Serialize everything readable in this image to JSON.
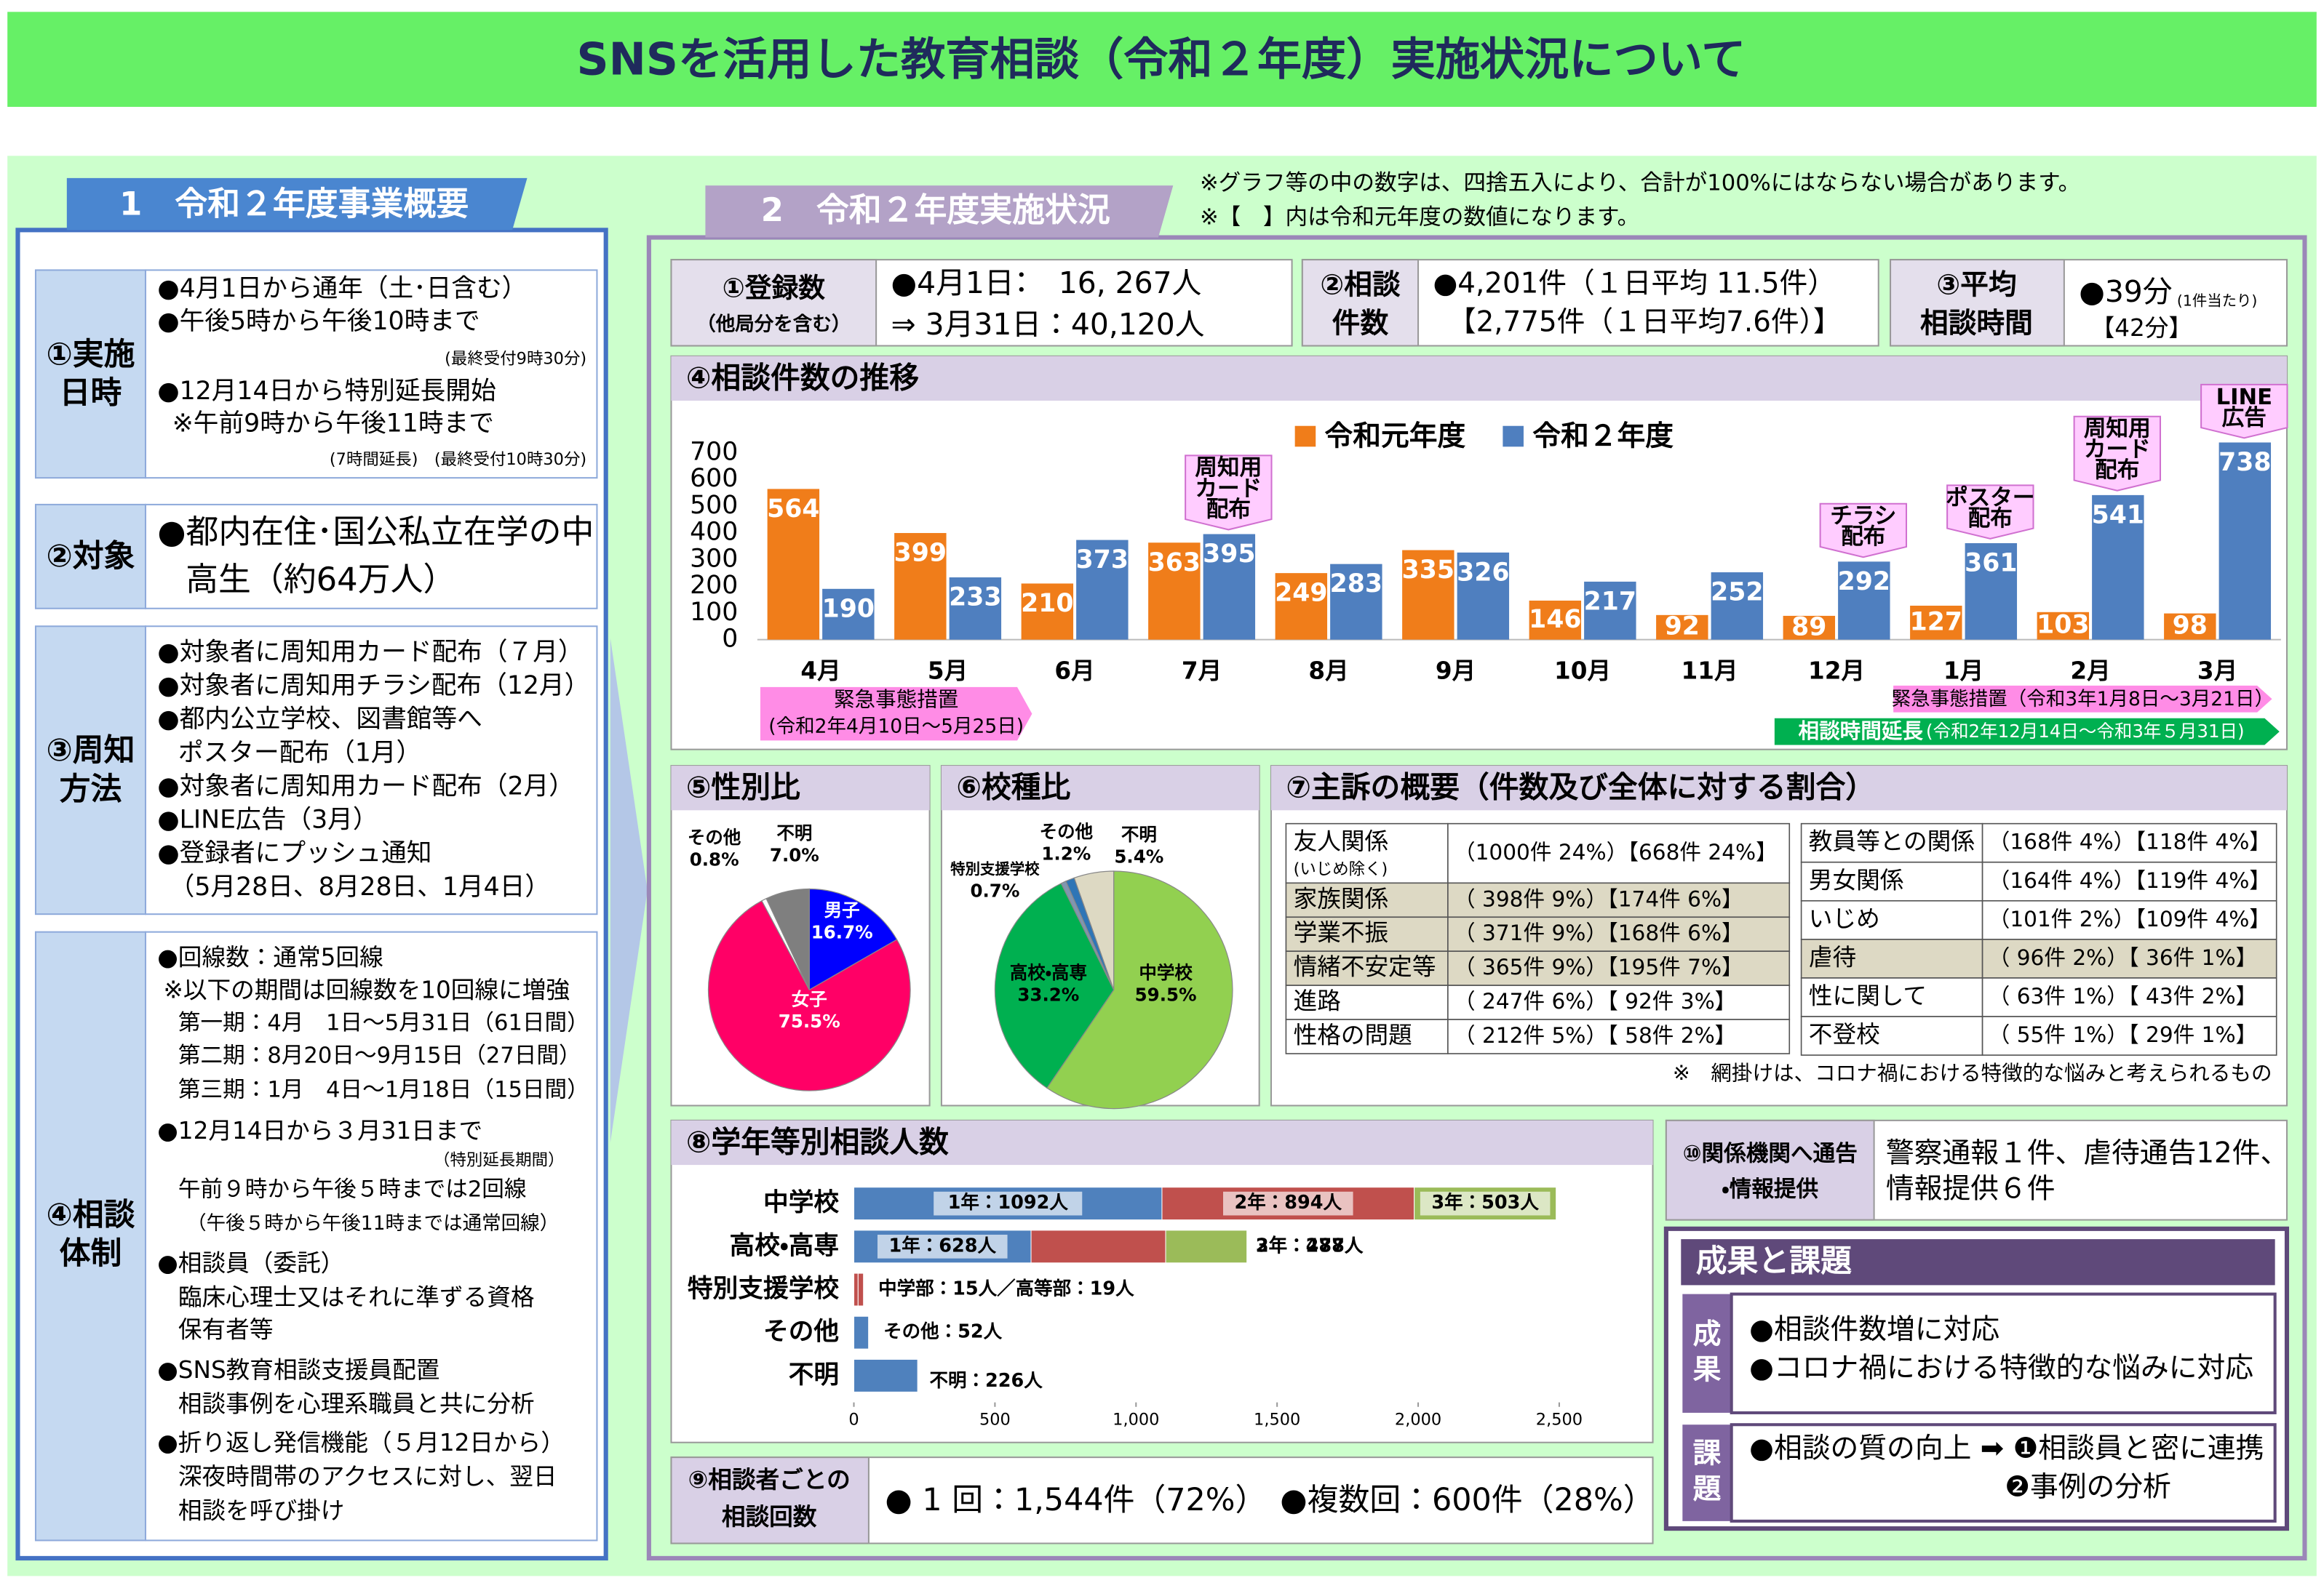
{
  "title": "SNSを活用した教育相談（令和２年度）実施状況について",
  "section1": {
    "heading": "1　令和２年度事業概要",
    "blocks": [
      {
        "label": [
          "①実施",
          "日時"
        ],
        "lines": [
          "●4月1日から通年（土･日含む）",
          "●午後5時から午後10時まで",
          "(最終受付9時30分)",
          "●12月14日から特別延長開始",
          "※午前9時から午後11時まで",
          "(7時間延長)　(最終受付10時30分)"
        ]
      },
      {
        "label": [
          "②対象"
        ],
        "lines": [
          "●都内在住･国公私立在学の中",
          "高生（約64万人）"
        ]
      },
      {
        "label": [
          "③周知",
          "方法"
        ],
        "lines": [
          "●対象者に周知用カード配布（７月）",
          "●対象者に周知用チラシ配布（12月）",
          "●都内公立学校、図書館等へ",
          "ポスター配布（1月）",
          "●対象者に周知用カード配布（2月）",
          "●LINE広告（3月）",
          "●登録者にプッシュ通知",
          "（5月28日、8月28日、1月4日）"
        ]
      },
      {
        "label": [
          "④相談",
          "体制"
        ],
        "lines": [
          "●回線数：通常5回線",
          "※以下の期間は回線数を10回線に増強",
          "第一期：4月　1日～5月31日（61日間）",
          "第二期：8月20日～9月15日（27日間）",
          "第三期：1月　4日～1月18日（15日間）",
          "●12月14日から３月31日まで",
          "（特別延長期間）",
          "午前９時から午後５時までは2回線",
          "（午後５時から午後11時までは通常回線）",
          "●相談員（委託）",
          "臨床心理士又はそれに準ずる資格",
          "保有者等",
          "●SNS教育相談支援員配置",
          "相談事例を心理系職員と共に分析",
          "●折り返し発信機能（５月12日から）",
          "深夜時間帯のアクセスに対し、翌日",
          "相談を呼び掛け"
        ]
      }
    ]
  },
  "section2": {
    "heading": "2　令和２年度実施状況",
    "notes": [
      "※グラフ等の中の数字は、四捨五入により、合計が100%にはならない場合があります。",
      "※【　】内は令和元年度の数値になります。"
    ],
    "summary": [
      {
        "label": [
          "①登録数",
          "（他局分を含む）"
        ],
        "lines": [
          "●4月1日：　16, 267人",
          "⇒ 3月31日：40,120人"
        ]
      },
      {
        "label": [
          "②相談",
          "件数"
        ],
        "lines": [
          "●4,201件（１日平均 11.5件）",
          "【2,775件（１日平均7.6件）】"
        ]
      },
      {
        "label": [
          "③平均",
          "相談時間"
        ],
        "lines": [
          "●39分",
          "(1件当たり)",
          "【42分】"
        ]
      }
    ],
    "complaints": {
      "title": "⑦主訴の概要（件数及び全体に対する割合）",
      "tables": [
        [
          {
            "label": [
              "友人関係",
              "(いじめ除く)"
            ],
            "value": "（1000件 24%）【668件 24%】",
            "shaded": false
          },
          {
            "label": [
              "家族関係"
            ],
            "value": "（ 398件 9%）【174件 6%】",
            "shaded": true
          },
          {
            "label": [
              "学業不振"
            ],
            "value": "（ 371件 9%）【168件 6%】",
            "shaded": true
          },
          {
            "label": [
              "情緒不安定等"
            ],
            "value": "（ 365件 9%）【195件 7%】",
            "shaded": true
          },
          {
            "label": [
              "進路"
            ],
            "value": "（ 247件 6%）【 92件 3%】",
            "shaded": false
          },
          {
            "label": [
              "性格の問題"
            ],
            "value": "（ 212件 5%）【 58件 2%】",
            "shaded": false
          }
        ],
        [
          {
            "label": [
              "教員等との関係"
            ],
            "value": "（168件 4%）【118件 4%】",
            "shaded": false
          },
          {
            "label": [
              "男女関係"
            ],
            "value": "（164件 4%）【119件 4%】",
            "shaded": false
          },
          {
            "label": [
              "いじめ"
            ],
            "value": "（101件 2%）【109件 4%】",
            "shaded": false
          },
          {
            "label": [
              "虐待"
            ],
            "value": "（ 96件 2%）【 36件 1%】",
            "shaded": true
          },
          {
            "label": [
              "性に関して"
            ],
            "value": "（ 63件 1%）【 43件 2%】",
            "shaded": false
          },
          {
            "label": [
              "不登校"
            ],
            "value": "（ 55件 1%）【 29件 1%】",
            "shaded": false
          }
        ]
      ],
      "note": "※　網掛けは、コロナ禍における特徴的な悩みと考えられるもの"
    },
    "counts": {
      "label": [
        "⑨相談者ごとの",
        "相談回数"
      ],
      "lines": [
        "● 1 回：1,544件（72%）",
        "●複数回：600件（28%）"
      ]
    },
    "referrals": {
      "label": [
        "⑩関係機関へ通告",
        "・情報提供"
      ],
      "lines": [
        "警察通報１件、虐待通告12件、",
        "情報提供６件"
      ]
    },
    "results": {
      "heading": "成果と課題",
      "rows": [
        {
          "label": [
            "成",
            "果"
          ],
          "lines": [
            "●相談件数増に対応",
            "●コロナ禍における特徴的な悩みに対応"
          ]
        },
        {
          "label": [
            "課",
            "題"
          ],
          "lines": [
            "●相談の質の向上 ➡ ❶相談員と密に連携",
            "❷事例の分析"
          ]
        }
      ]
    }
  },
  "chart_data": [
    {
      "type": "bar",
      "title": "④相談件数の推移",
      "categories": [
        "4月",
        "5月",
        "6月",
        "7月",
        "8月",
        "9月",
        "10月",
        "11月",
        "12月",
        "1月",
        "2月",
        "3月"
      ],
      "series": [
        {
          "name": "令和元年度",
          "color": "#f07d1a",
          "values": [
            564,
            399,
            210,
            363,
            249,
            335,
            146,
            92,
            89,
            127,
            103,
            98
          ]
        },
        {
          "name": "令和２年度",
          "color": "#4f7fbf",
          "values": [
            190,
            233,
            373,
            395,
            283,
            326,
            217,
            252,
            292,
            361,
            541,
            738
          ]
        }
      ],
      "ylim": [
        0,
        700
      ],
      "yticks": [
        0,
        100,
        200,
        300,
        400,
        500,
        600,
        700
      ],
      "grid": false,
      "annotations": [
        {
          "text": [
            "周知用",
            "カード",
            "配布"
          ]
        },
        {
          "text": [
            "チラシ",
            "配布"
          ]
        },
        {
          "text": [
            "ポスター",
            "配布"
          ]
        },
        {
          "text": [
            "周知用",
            "カード",
            "配布"
          ]
        },
        {
          "text": [
            "LINE",
            "広告"
          ]
        }
      ],
      "periods": [
        {
          "lines": [
            "緊急事態措置",
            "(令和2年4月10日～5月25日)"
          ],
          "color": "#ff8ce6"
        },
        {
          "lines": [
            "緊急事態措置（令和3年1月8日～3月21日）"
          ],
          "color": "#ff8ce6"
        },
        {
          "lines": [
            "相談時間延長",
            "(令和2年12月14日～令和3年５月31日)"
          ],
          "color": "#00b050"
        }
      ]
    },
    {
      "type": "pie",
      "title": "⑤性別比",
      "categories": [
        "男子",
        "女子",
        "その他",
        "不明"
      ],
      "values": [
        16.7,
        75.5,
        0.8,
        7.0
      ],
      "value_labels": [
        "16.7%",
        "75.5%",
        "0.8%",
        "7.0%"
      ],
      "colors": [
        "#0000ff",
        "#ff0066",
        "#ffffff",
        "#7f7f7f"
      ]
    },
    {
      "type": "pie",
      "title": "⑥校種比",
      "categories": [
        "中学校",
        "高校・高専",
        "特別支援学校",
        "その他",
        "不明"
      ],
      "values": [
        59.5,
        33.2,
        0.7,
        1.2,
        5.4
      ],
      "value_labels": [
        "59.5%",
        "33.2%",
        "0.7%",
        "1.2%",
        "5.4%"
      ],
      "colors": [
        "#92d050",
        "#00b050",
        "#8096b0",
        "#2e75b6",
        "#ddd9c3"
      ]
    },
    {
      "type": "hbar_stacked",
      "title": "⑧学年等別相談人数",
      "categories": [
        "中学校",
        "高校・高専",
        "特別支援学校",
        "その他",
        "不明"
      ],
      "bars": [
        {
          "segments": [
            {
              "value": 1092,
              "color": "#4f81bd",
              "value_label": "1年：1092人"
            },
            {
              "value": 894,
              "color": "#c0504d",
              "value_label": "2年：894人"
            },
            {
              "value": 503,
              "color": "#9bbb59",
              "value_label": "3年：503人"
            }
          ]
        },
        {
          "segments": [
            {
              "value": 628,
              "color": "#4f81bd",
              "value_label": "1年：628人"
            },
            {
              "value": 477,
              "color": "#c0504d",
              "value_label": "2年：477人"
            },
            {
              "value": 288,
              "color": "#9bbb59",
              "value_label": "3年：288人"
            }
          ]
        },
        {
          "segments": [
            {
              "value": 15,
              "color": "#c0504d"
            },
            {
              "value": 19,
              "color": "#c0504d"
            }
          ],
          "value_label": "中学部：15人／高等部：19人"
        },
        {
          "segments": [
            {
              "value": 52,
              "color": "#4f81bd"
            }
          ],
          "value_label": "その他：52人"
        },
        {
          "segments": [
            {
              "value": 226,
              "color": "#4f81bd"
            }
          ],
          "value_label": "不明：226人"
        }
      ],
      "xlim": [
        0,
        2500
      ],
      "xticks": [
        0,
        500,
        {
          "value": 1000,
          "label": "1,000"
        },
        {
          "value": 1500,
          "label": "1,500"
        },
        {
          "value": 2000,
          "label": "2,000"
        },
        {
          "value": 2500,
          "label": "2,500"
        }
      ]
    }
  ]
}
